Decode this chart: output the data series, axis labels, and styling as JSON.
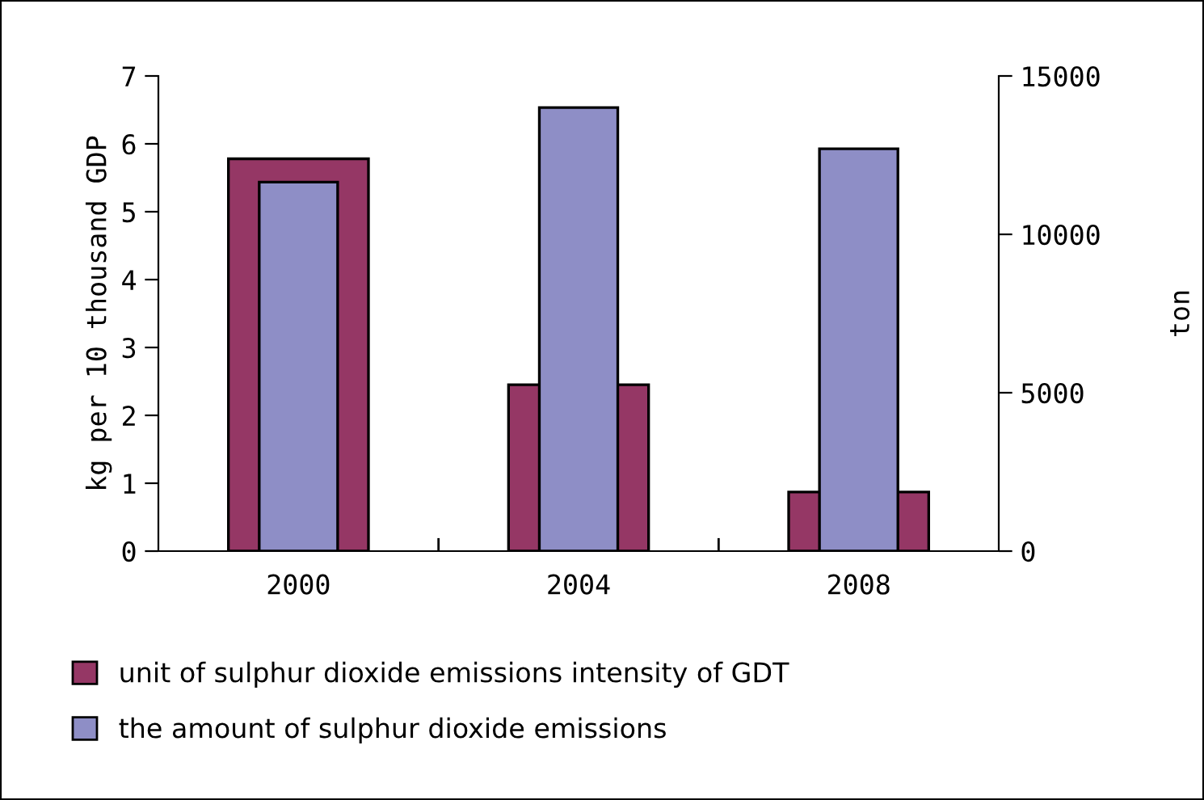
{
  "chart_data": {
    "type": "bar",
    "categories": [
      "2000",
      "2004",
      "2008"
    ],
    "ylabel": "kg per 10 thousand GDP",
    "y2label": "ton",
    "series": [
      {
        "name": "unit of sulphur dioxide emissions intensity of GDT",
        "color": "#953765",
        "values": [
          5.78,
          2.45,
          0.87
        ]
      },
      {
        "name": "the amount of sulphur dioxide emissions",
        "color": "#8e8ec6",
        "values": [
          11650,
          14000,
          12700
        ],
        "axis": "y2"
      }
    ],
    "ylim": [
      0,
      7
    ],
    "yticks": [
      0,
      1,
      2,
      3,
      4,
      5,
      6,
      7
    ],
    "y2lim": [
      0,
      15000
    ],
    "y2ticks": [
      0,
      5000,
      10000,
      15000
    ],
    "grid": false,
    "legend": "bottom"
  }
}
